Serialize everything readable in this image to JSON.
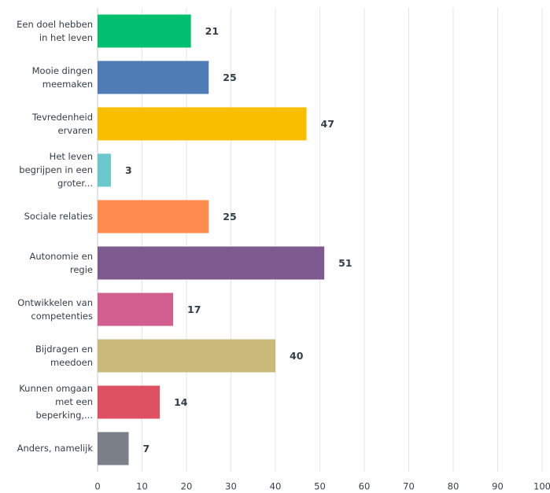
{
  "chart_data": {
    "type": "bar",
    "orientation": "horizontal",
    "categories": [
      "Een doel hebben in het leven",
      "Mooie dingen meemaken",
      "Tevredenheid ervaren",
      "Het leven begrijpen in een groter...",
      "Sociale relaties",
      "Autonomie en regie",
      "Ontwikkelen van competenties",
      "Bijdragen en meedoen",
      "Kunnen omgaan met een beperking,...",
      "Anders, namelijk"
    ],
    "values": [
      21,
      25,
      47,
      3,
      25,
      51,
      17,
      40,
      14,
      7
    ],
    "colors": [
      "#00bf6f",
      "#507cb6",
      "#f9be00",
      "#6bc8cd",
      "#ff8b4f",
      "#7f5a90",
      "#d25f90",
      "#c9b97a",
      "#de5162",
      "#7b8088"
    ],
    "xlim": [
      0,
      100
    ],
    "xticks": [
      0,
      10,
      20,
      30,
      40,
      50,
      60,
      70,
      80,
      90,
      100
    ],
    "grid": true
  }
}
